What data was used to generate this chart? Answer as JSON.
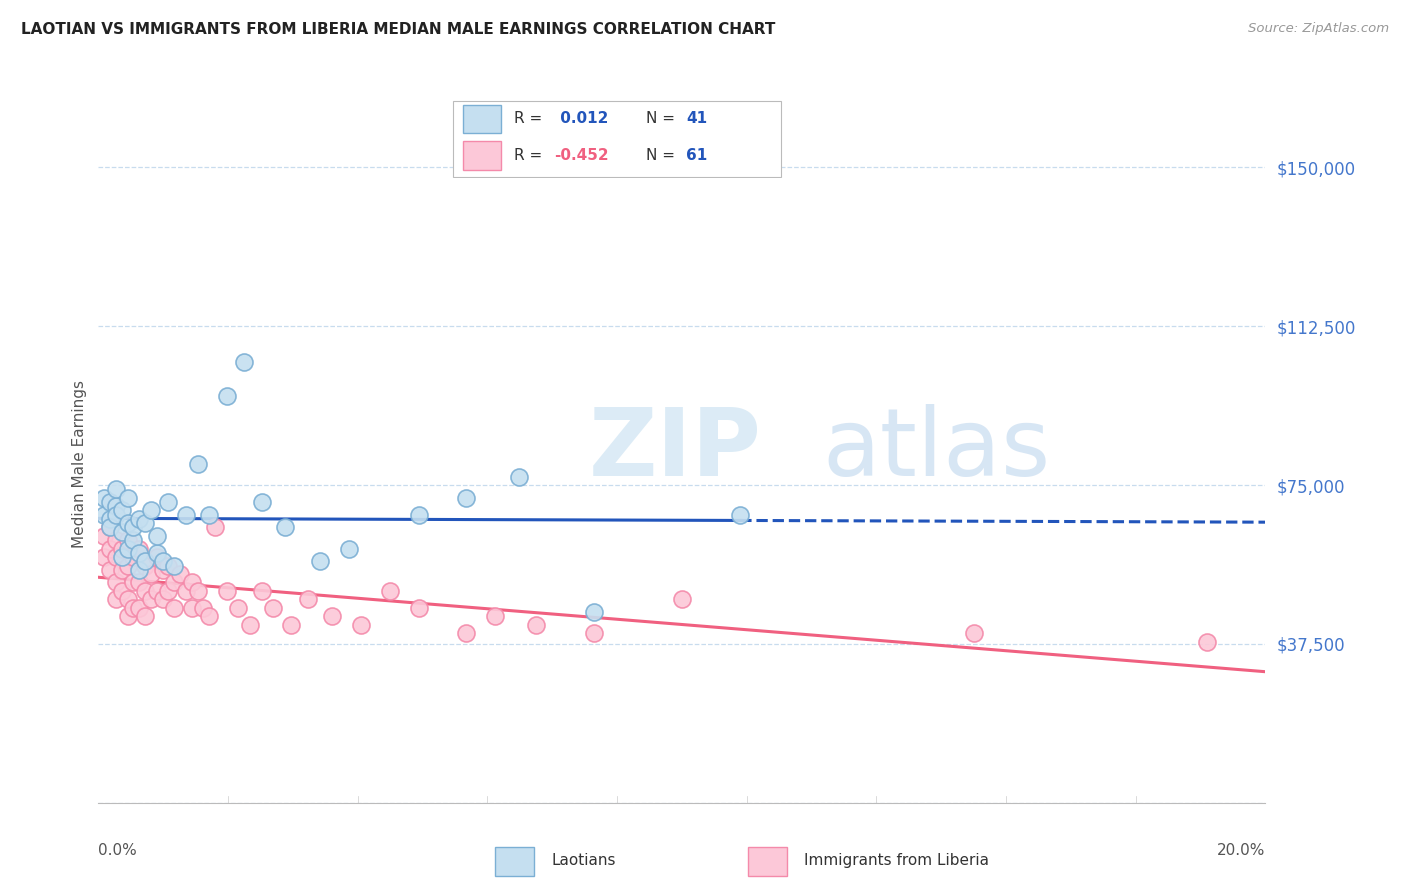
{
  "title": "LAOTIAN VS IMMIGRANTS FROM LIBERIA MEDIAN MALE EARNINGS CORRELATION CHART",
  "source": "Source: ZipAtlas.com",
  "ylabel": "Median Male Earnings",
  "y_ticks": [
    0,
    37500,
    75000,
    112500,
    150000
  ],
  "y_tick_labels": [
    "",
    "$37,500",
    "$75,000",
    "$112,500",
    "$150,000"
  ],
  "xmin": 0.0,
  "xmax": 0.2,
  "ymin": 0,
  "ymax": 160000,
  "series1_color": "#7bafd4",
  "series1_face": "#c5dff0",
  "series2_color": "#f48aaa",
  "series2_face": "#fcc8d8",
  "trend1_color": "#2255bb",
  "trend2_color": "#f06080",
  "watermark_zip": "ZIP",
  "watermark_atlas": "atlas",
  "legend_label1": "Laotians",
  "legend_label2": "Immigrants from Liberia",
  "legend_R1": " 0.012",
  "legend_N1": "41",
  "legend_R2": "-0.452",
  "legend_N2": "61",
  "laotian_x": [
    0.001,
    0.001,
    0.002,
    0.002,
    0.002,
    0.003,
    0.003,
    0.003,
    0.004,
    0.004,
    0.004,
    0.005,
    0.005,
    0.005,
    0.006,
    0.006,
    0.007,
    0.007,
    0.007,
    0.008,
    0.008,
    0.009,
    0.01,
    0.01,
    0.011,
    0.012,
    0.013,
    0.015,
    0.017,
    0.019,
    0.022,
    0.025,
    0.028,
    0.032,
    0.038,
    0.043,
    0.055,
    0.063,
    0.072,
    0.085,
    0.11
  ],
  "laotian_y": [
    68000,
    72000,
    67000,
    71000,
    65000,
    70000,
    74000,
    68000,
    64000,
    69000,
    58000,
    66000,
    60000,
    72000,
    62000,
    65000,
    59000,
    67000,
    55000,
    66000,
    57000,
    69000,
    59000,
    63000,
    57000,
    71000,
    56000,
    68000,
    80000,
    68000,
    96000,
    104000,
    71000,
    65000,
    57000,
    60000,
    68000,
    72000,
    77000,
    45000,
    68000
  ],
  "liberia_x": [
    0.001,
    0.001,
    0.002,
    0.002,
    0.002,
    0.003,
    0.003,
    0.003,
    0.003,
    0.004,
    0.004,
    0.004,
    0.005,
    0.005,
    0.005,
    0.005,
    0.006,
    0.006,
    0.006,
    0.007,
    0.007,
    0.007,
    0.008,
    0.008,
    0.008,
    0.009,
    0.009,
    0.01,
    0.01,
    0.011,
    0.011,
    0.012,
    0.012,
    0.013,
    0.013,
    0.014,
    0.015,
    0.016,
    0.016,
    0.017,
    0.018,
    0.019,
    0.02,
    0.022,
    0.024,
    0.026,
    0.028,
    0.03,
    0.033,
    0.036,
    0.04,
    0.045,
    0.05,
    0.055,
    0.063,
    0.068,
    0.075,
    0.085,
    0.1,
    0.15,
    0.19
  ],
  "liberia_y": [
    63000,
    58000,
    65000,
    60000,
    55000,
    62000,
    58000,
    52000,
    48000,
    60000,
    55000,
    50000,
    62000,
    56000,
    48000,
    44000,
    58000,
    52000,
    46000,
    60000,
    52000,
    46000,
    56000,
    50000,
    44000,
    54000,
    48000,
    58000,
    50000,
    55000,
    48000,
    56000,
    50000,
    52000,
    46000,
    54000,
    50000,
    52000,
    46000,
    50000,
    46000,
    44000,
    65000,
    50000,
    46000,
    42000,
    50000,
    46000,
    42000,
    48000,
    44000,
    42000,
    50000,
    46000,
    40000,
    44000,
    42000,
    40000,
    48000,
    40000,
    38000
  ]
}
